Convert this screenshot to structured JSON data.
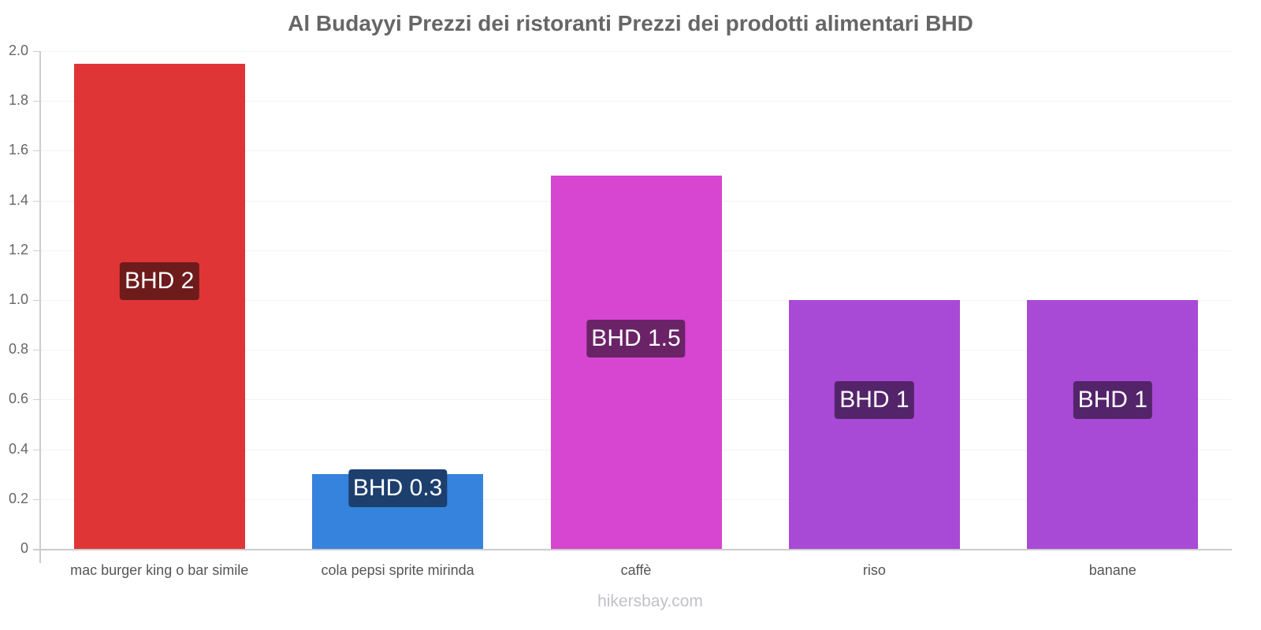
{
  "chart_data": {
    "type": "bar",
    "title": "Al Budayyi Prezzi dei ristoranti Prezzi dei prodotti alimentari BHD",
    "xlabel": "",
    "ylabel": "",
    "ylim": [
      0,
      2.0
    ],
    "grid": true,
    "legend": null,
    "categories": [
      "mac burger king o bar simile",
      "cola pepsi sprite mirinda",
      "caffè",
      "riso",
      "banane"
    ],
    "values": [
      1.95,
      0.3,
      1.5,
      1.0,
      1.0
    ],
    "data_labels": [
      "BHD 2",
      "BHD 0.3",
      "BHD 1.5",
      "BHD 1",
      "BHD 1"
    ],
    "yticks": [
      "0",
      "0.2",
      "0.4",
      "0.6",
      "0.8",
      "1.0",
      "1.2",
      "1.4",
      "1.6",
      "1.8",
      "2.0"
    ],
    "colors": [
      "#e03537",
      "#3583dc",
      "#d646d1",
      "#a84ad6",
      "#a84ad6"
    ],
    "label_bg_colors": [
      "#6e1b1c",
      "#1c3f6e",
      "#6b2368",
      "#54246b",
      "#54246b"
    ]
  },
  "watermark": "hikersbay.com"
}
